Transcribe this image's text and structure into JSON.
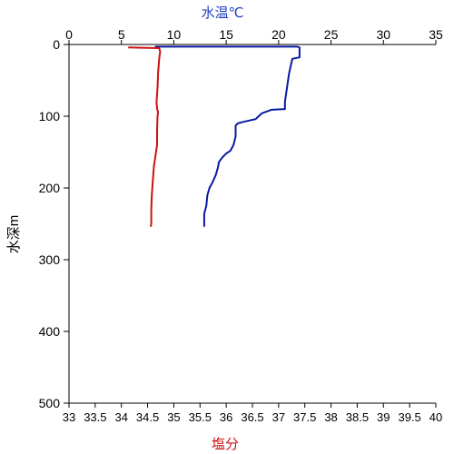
{
  "chart_data": {
    "type": "line",
    "top_axis": {
      "label": "水温℃",
      "label_color": "#1f3fbf",
      "min": 0,
      "max": 35,
      "ticks": [
        0,
        5,
        10,
        15,
        20,
        25,
        30,
        35
      ]
    },
    "bottom_axis": {
      "label": "塩分",
      "label_color": "#cc1111",
      "min": 33,
      "max": 40,
      "ticks": [
        "33",
        "33.5",
        "34",
        "34.5",
        "35",
        "35.5",
        "36",
        "36.5",
        "37",
        "37.5",
        "38",
        "38.5",
        "39",
        "39.5",
        "40"
      ]
    },
    "left_axis": {
      "label": "水深m",
      "min": 0,
      "max": 500,
      "ticks": [
        0,
        100,
        200,
        300,
        400,
        500
      ],
      "inverted": true
    },
    "series": [
      {
        "key": "temperature",
        "axis": "top",
        "color": "#0a1aa0",
        "points": [
          [
            8.2,
            3
          ],
          [
            21.8,
            3
          ],
          [
            22.0,
            4
          ],
          [
            22.0,
            18
          ],
          [
            21.3,
            20
          ],
          [
            21.0,
            40
          ],
          [
            20.8,
            60
          ],
          [
            20.6,
            80
          ],
          [
            20.6,
            90
          ],
          [
            19.3,
            91
          ],
          [
            18.4,
            96
          ],
          [
            18.1,
            100
          ],
          [
            17.8,
            104
          ],
          [
            16.6,
            108
          ],
          [
            16.1,
            110
          ],
          [
            15.9,
            113
          ],
          [
            15.9,
            128
          ],
          [
            15.7,
            140
          ],
          [
            15.4,
            148
          ],
          [
            15.0,
            152
          ],
          [
            14.6,
            158
          ],
          [
            14.3,
            164
          ],
          [
            14.2,
            172
          ],
          [
            14.0,
            182
          ],
          [
            13.7,
            192
          ],
          [
            13.4,
            200
          ],
          [
            13.2,
            210
          ],
          [
            13.1,
            225
          ],
          [
            12.9,
            236
          ],
          [
            12.9,
            254
          ]
        ]
      },
      {
        "key": "salinity",
        "axis": "bottom",
        "color": "#cc1111",
        "points": [
          [
            34.13,
            4
          ],
          [
            34.72,
            5
          ],
          [
            34.74,
            10
          ],
          [
            34.72,
            20
          ],
          [
            34.7,
            40
          ],
          [
            34.69,
            60
          ],
          [
            34.67,
            80
          ],
          [
            34.68,
            90
          ],
          [
            34.7,
            94
          ],
          [
            34.69,
            100
          ],
          [
            34.68,
            120
          ],
          [
            34.68,
            140
          ],
          [
            34.66,
            150
          ],
          [
            34.64,
            160
          ],
          [
            34.62,
            170
          ],
          [
            34.6,
            190
          ],
          [
            34.58,
            210
          ],
          [
            34.57,
            230
          ],
          [
            34.57,
            250
          ],
          [
            34.56,
            254
          ]
        ]
      }
    ],
    "grid": false
  }
}
